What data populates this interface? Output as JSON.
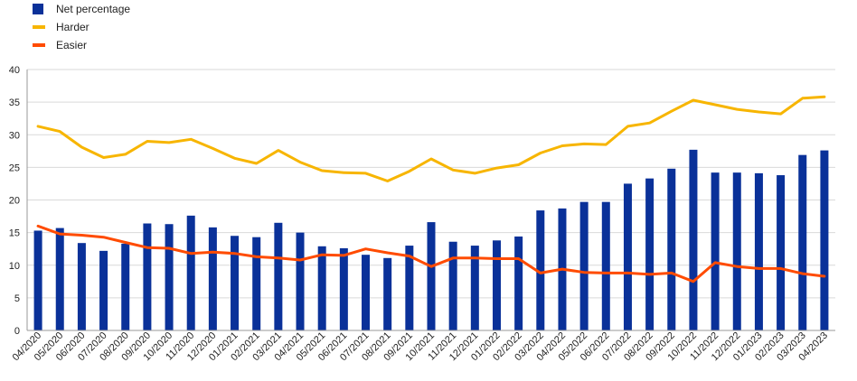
{
  "legend": {
    "net_label": "Net percentage",
    "harder_label": "Harder",
    "easier_label": "Easier"
  },
  "colors": {
    "net": "#0a3199",
    "harder": "#f7b500",
    "easier": "#ff4b00",
    "grid": "#d9d9d9",
    "axis": "#9a9a9a"
  },
  "chart_data": {
    "type": "bar",
    "categories": [
      "04/2020",
      "05/2020",
      "06/2020",
      "07/2020",
      "08/2020",
      "09/2020",
      "10/2020",
      "11/2020",
      "12/2020",
      "01/2021",
      "02/2021",
      "03/2021",
      "04/2021",
      "05/2021",
      "06/2021",
      "07/2021",
      "08/2021",
      "09/2021",
      "10/2021",
      "11/2021",
      "12/2021",
      "01/2022",
      "02/2022",
      "03/2022",
      "04/2022",
      "05/2022",
      "06/2022",
      "07/2022",
      "08/2022",
      "09/2022",
      "10/2022",
      "11/2022",
      "12/2022",
      "01/2023",
      "02/2023",
      "03/2023",
      "04/2023"
    ],
    "series": [
      {
        "name": "Net percentage",
        "kind": "bar",
        "values": [
          15.3,
          15.7,
          13.4,
          12.2,
          13.3,
          16.4,
          16.3,
          17.6,
          15.8,
          14.5,
          14.3,
          16.5,
          15.0,
          12.9,
          12.6,
          11.6,
          11.1,
          13.0,
          16.6,
          13.6,
          13.0,
          13.8,
          14.4,
          18.4,
          18.7,
          19.7,
          19.7,
          22.5,
          23.3,
          24.8,
          27.7,
          24.2,
          24.2,
          24.1,
          23.8,
          26.9,
          27.6
        ]
      },
      {
        "name": "Harder",
        "kind": "line",
        "values": [
          31.3,
          30.5,
          28.1,
          26.5,
          27.0,
          29.0,
          28.8,
          29.3,
          27.9,
          26.4,
          25.6,
          27.6,
          25.8,
          24.5,
          24.2,
          24.1,
          22.9,
          24.4,
          26.3,
          24.6,
          24.1,
          24.9,
          25.4,
          27.2,
          28.3,
          28.6,
          28.5,
          31.3,
          31.8,
          33.6,
          35.3,
          34.6,
          33.9,
          33.5,
          33.2,
          35.6,
          35.8
        ]
      },
      {
        "name": "Easier",
        "kind": "line",
        "values": [
          16.0,
          14.8,
          14.6,
          14.3,
          13.5,
          12.7,
          12.6,
          11.8,
          12.0,
          11.8,
          11.3,
          11.1,
          10.8,
          11.6,
          11.5,
          12.5,
          11.9,
          11.4,
          9.8,
          11.1,
          11.1,
          11.0,
          11.0,
          8.8,
          9.4,
          8.9,
          8.8,
          8.8,
          8.6,
          8.8,
          7.5,
          10.4,
          9.8,
          9.5,
          9.5,
          8.7,
          8.3
        ]
      }
    ],
    "ylim": [
      0,
      40
    ],
    "yticks": [
      0,
      5,
      10,
      15,
      20,
      25,
      30,
      35,
      40
    ],
    "grid": true,
    "legend_position": "top-left"
  }
}
